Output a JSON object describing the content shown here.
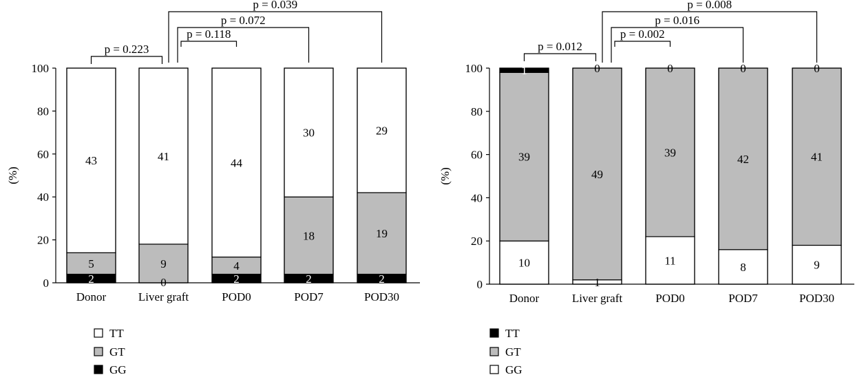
{
  "chart_data": [
    {
      "type": "bar",
      "stacked": true,
      "ylabel": "(%)",
      "ylim": [
        0,
        100
      ],
      "yticks": [
        0,
        20,
        40,
        60,
        80,
        100
      ],
      "categories": [
        "Donor",
        "Liver graft",
        "POD0",
        "POD7",
        "POD30"
      ],
      "series": [
        {
          "name": "GG",
          "color": "#000000",
          "percent": [
            4.0,
            0.0,
            4.0,
            4.0,
            4.0
          ],
          "counts": [
            "2",
            "0",
            "2",
            "2",
            "2"
          ]
        },
        {
          "name": "GT",
          "color": "#bcbcbc",
          "percent": [
            10.0,
            18.0,
            8.0,
            36.0,
            38.0
          ],
          "counts": [
            "5",
            "9",
            "4",
            "18",
            "19"
          ]
        },
        {
          "name": "TT",
          "color": "#ffffff",
          "percent": [
            86.0,
            82.0,
            88.0,
            60.0,
            58.0
          ],
          "counts": [
            "43",
            "41",
            "44",
            "30",
            "29"
          ]
        }
      ],
      "legend": [
        {
          "name": "TT",
          "color": "#ffffff"
        },
        {
          "name": "GT",
          "color": "#bcbcbc"
        },
        {
          "name": "GG",
          "color": "#000000"
        }
      ],
      "comparisons": [
        {
          "from": 0,
          "to": 1,
          "text": "p = 0.223"
        },
        {
          "from": 1,
          "to": 2,
          "text": "p = 0.118"
        },
        {
          "from": 1,
          "to": 3,
          "text": "p = 0.072"
        },
        {
          "from": 1,
          "to": 4,
          "text": "p = 0.039"
        }
      ]
    },
    {
      "type": "bar",
      "stacked": true,
      "ylabel": "(%)",
      "ylim": [
        0,
        100
      ],
      "yticks": [
        0,
        20,
        40,
        60,
        80,
        100
      ],
      "categories": [
        "Donor",
        "Liver graft",
        "POD0",
        "POD7",
        "POD30"
      ],
      "series": [
        {
          "name": "GG",
          "color": "#ffffff",
          "percent": [
            20.0,
            2.0,
            22.0,
            16.0,
            18.0
          ],
          "counts": [
            "10",
            "1",
            "11",
            "8",
            "9"
          ]
        },
        {
          "name": "GT",
          "color": "#bcbcbc",
          "percent": [
            78.0,
            98.0,
            78.0,
            84.0,
            82.0
          ],
          "counts": [
            "39",
            "49",
            "39",
            "42",
            "41"
          ]
        },
        {
          "name": "TT",
          "color": "#000000",
          "percent": [
            2.0,
            0.0,
            0.0,
            0.0,
            0.0
          ],
          "counts": [
            "1",
            "0",
            "0",
            "0",
            "0"
          ]
        }
      ],
      "legend": [
        {
          "name": "TT",
          "color": "#000000"
        },
        {
          "name": "GT",
          "color": "#bcbcbc"
        },
        {
          "name": "GG",
          "color": "#ffffff"
        }
      ],
      "comparisons": [
        {
          "from": 0,
          "to": 1,
          "text": "p = 0.012"
        },
        {
          "from": 1,
          "to": 2,
          "text": "p = 0.002"
        },
        {
          "from": 1,
          "to": 3,
          "text": "p = 0.016"
        },
        {
          "from": 1,
          "to": 4,
          "text": "p = 0.008"
        }
      ]
    }
  ]
}
